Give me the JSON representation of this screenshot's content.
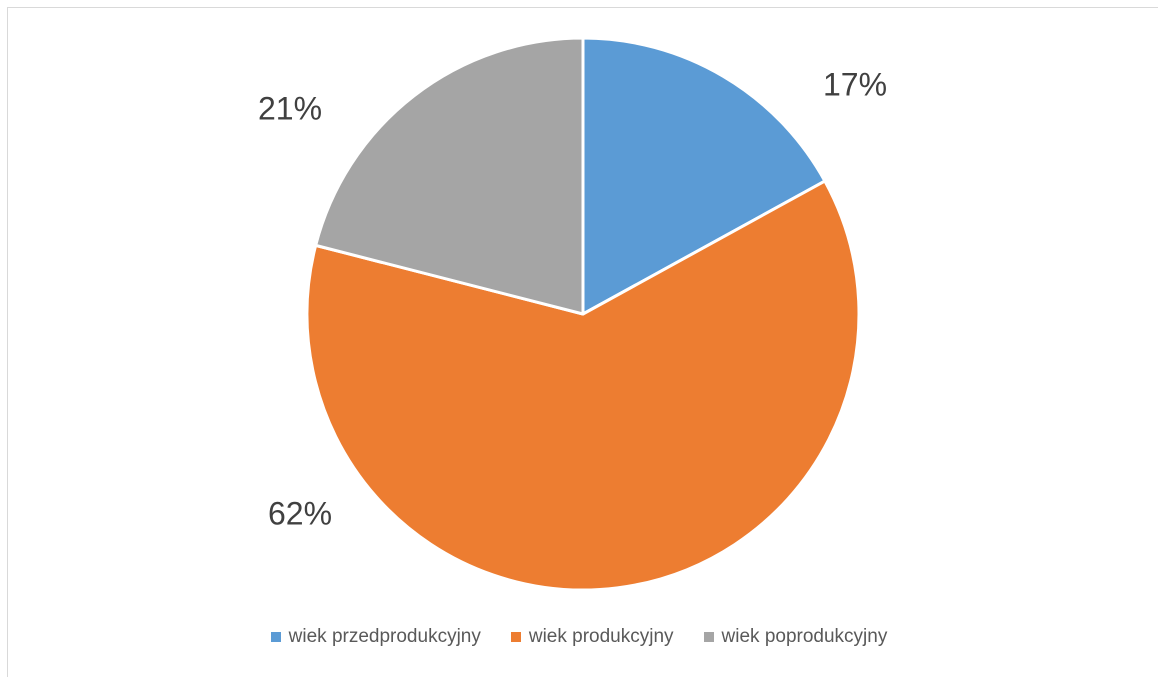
{
  "chart_data": {
    "type": "pie",
    "title": "",
    "categories": [
      "wiek przedprodukcyjny",
      "wiek produkcyjny",
      "wiek poprodukcyjny"
    ],
    "values": [
      17,
      62,
      21
    ],
    "data_labels": [
      "17%",
      "62%",
      "21%"
    ],
    "colors": [
      "#5B9BD5",
      "#ED7D31",
      "#A5A5A5"
    ],
    "start_angle_deg": 0,
    "direction": "clockwise",
    "legend_position": "bottom"
  }
}
